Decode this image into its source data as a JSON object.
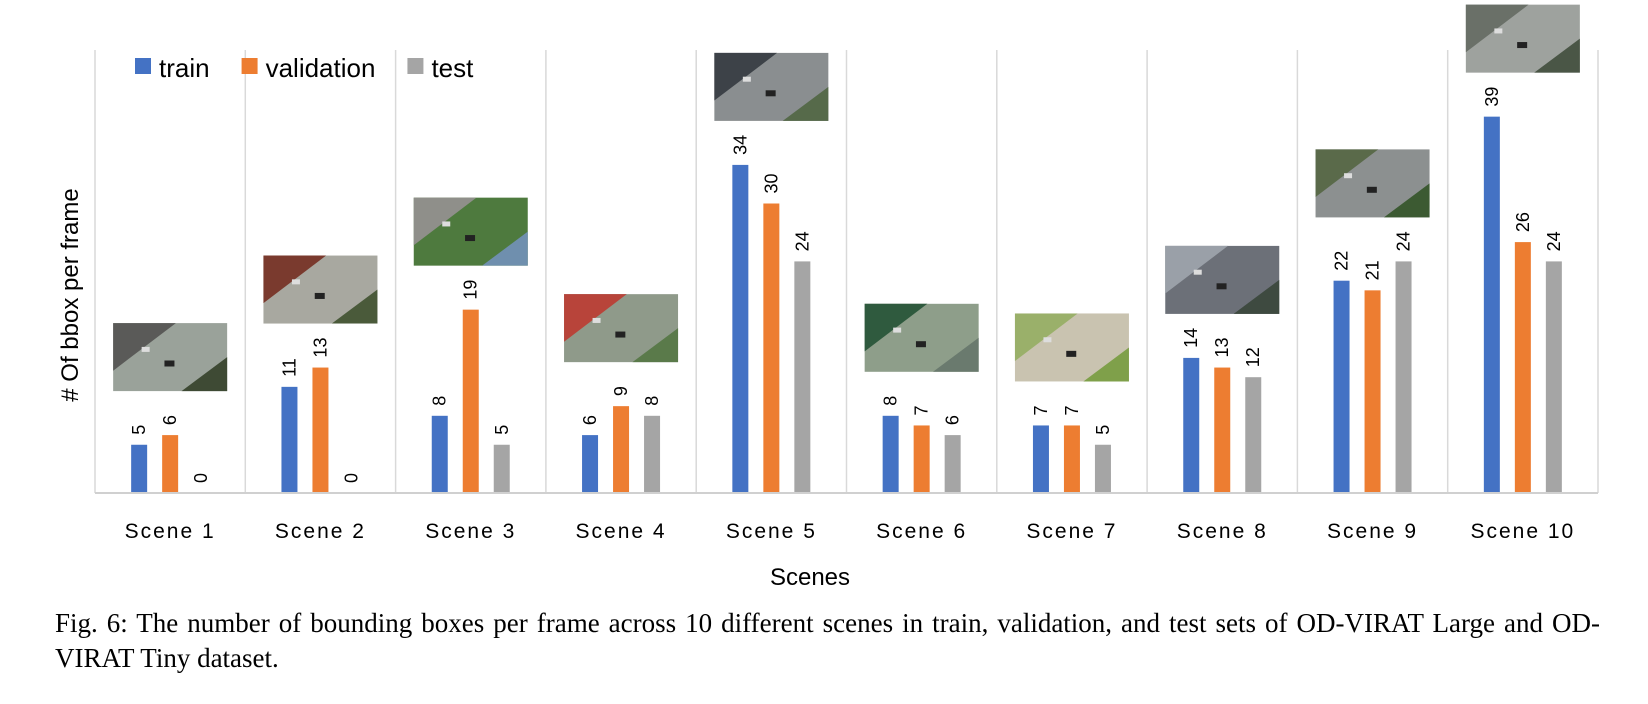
{
  "chart_data": {
    "type": "bar",
    "categories": [
      "Scene 1",
      "Scene 2",
      "Scene 3",
      "Scene 4",
      "Scene 5",
      "Scene 6",
      "Scene 7",
      "Scene 8",
      "Scene 9",
      "Scene 10"
    ],
    "series": [
      {
        "name": "train",
        "color": "#4472C4",
        "values": [
          5,
          11,
          8,
          6,
          34,
          8,
          7,
          14,
          22,
          39
        ]
      },
      {
        "name": "validation",
        "color": "#ED7D31",
        "values": [
          6,
          13,
          19,
          9,
          30,
          7,
          7,
          13,
          21,
          26
        ]
      },
      {
        "name": "test",
        "color": "#A5A5A5",
        "values": [
          0,
          0,
          5,
          8,
          24,
          6,
          5,
          12,
          24,
          24
        ]
      }
    ],
    "xlabel": "Scenes",
    "ylabel": "# Of bbox per frame",
    "ylim": [
      0,
      45
    ],
    "grid": "vertical separators between categories",
    "legend_position": "top-left",
    "data_labels": true,
    "thumbnails": "scene photo thumbnails above each category"
  },
  "caption": "Fig. 6: The number of bounding boxes per frame across 10 different scenes in train, validation, and test sets of OD-VIRAT Large and OD-VIRAT Tiny dataset."
}
